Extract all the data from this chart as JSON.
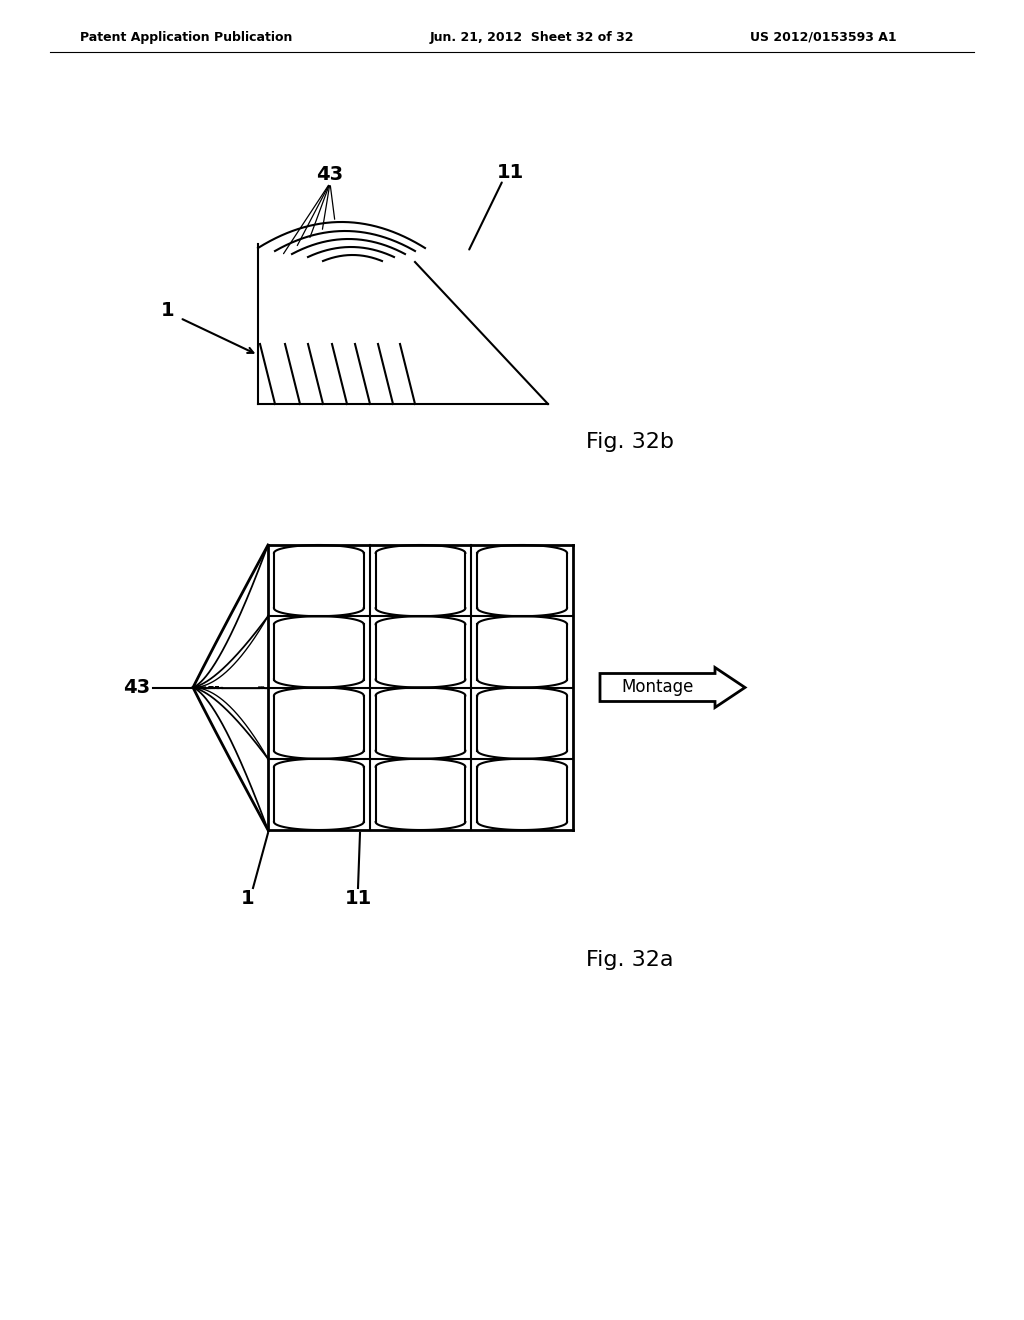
{
  "bg_color": "#ffffff",
  "line_color": "#000000",
  "header_left": "Patent Application Publication",
  "header_mid": "Jun. 21, 2012  Sheet 32 of 32",
  "header_right": "US 2012/0153593 A1",
  "fig32b_label": "Fig. 32b",
  "fig32a_label": "Fig. 32a",
  "label_1_top": "1",
  "label_43_top": "43",
  "label_11_top": "11",
  "label_43_bot": "43",
  "label_1_bot": "1",
  "label_11_bot": "11",
  "montage_label": "Montage"
}
